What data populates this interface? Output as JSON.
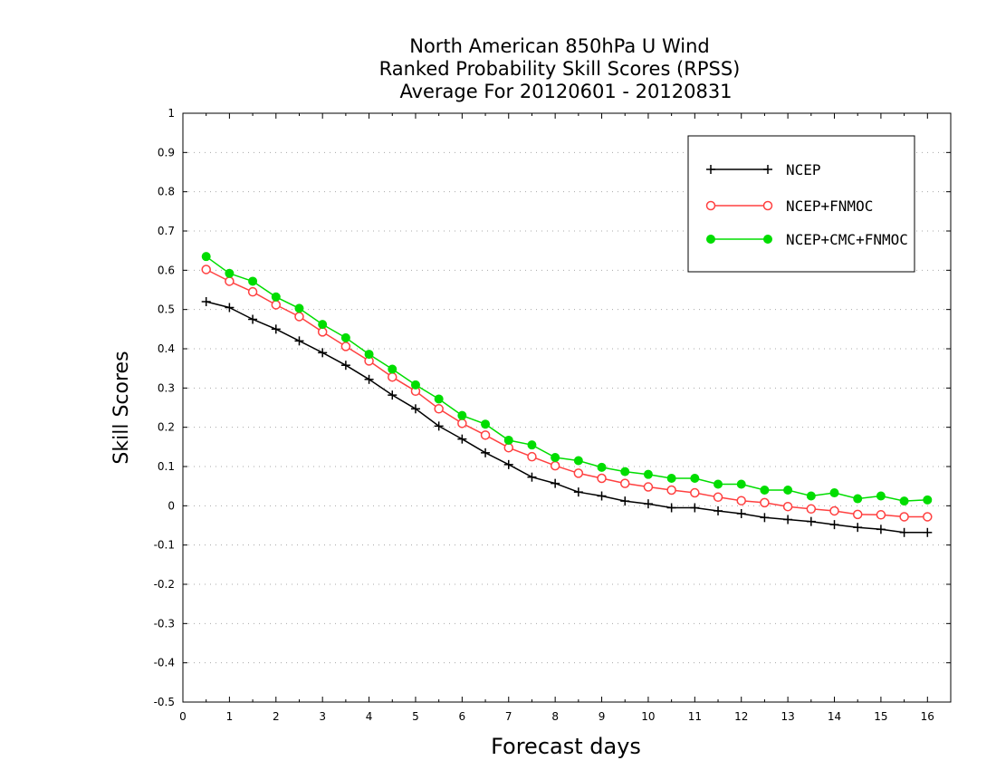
{
  "chart_data": {
    "type": "line",
    "title": [
      "North American 850hPa U Wind",
      "Ranked Probability Skill Scores (RPSS)",
      "Average For 20120601 - 20120831"
    ],
    "xlabel": "Forecast days",
    "ylabel": "Skill Scores",
    "xlim": [
      0,
      16.5
    ],
    "ylim": [
      -0.5,
      1
    ],
    "x_ticks": [
      0,
      1,
      2,
      3,
      4,
      5,
      6,
      7,
      8,
      9,
      10,
      11,
      12,
      13,
      14,
      15,
      16
    ],
    "x_tick_labels": [
      "0",
      "1",
      "2",
      "3",
      "4",
      "5",
      "6",
      "7",
      "8",
      "9",
      "10",
      "11",
      "12",
      "13",
      "14",
      "15",
      "16"
    ],
    "y_ticks": [
      -0.5,
      -0.4,
      -0.3,
      -0.2,
      -0.1,
      0,
      0.1,
      0.2,
      0.3,
      0.4,
      0.5,
      0.6,
      0.7,
      0.8,
      0.9,
      1
    ],
    "y_tick_labels": [
      "-0.5",
      "-0.4",
      "-0.3",
      "-0.2",
      "-0.1",
      "0",
      "0.1",
      "0.2",
      "0.3",
      "0.4",
      "0.5",
      "0.6",
      "0.7",
      "0.8",
      "0.9",
      "1"
    ],
    "grid": "dotted horizontal",
    "legend": "top-right",
    "x": [
      0.5,
      1,
      1.5,
      2,
      2.5,
      3,
      3.5,
      4,
      4.5,
      5,
      5.5,
      6,
      6.5,
      7,
      7.5,
      8,
      8.5,
      9,
      9.5,
      10,
      10.5,
      11,
      11.5,
      12,
      12.5,
      13,
      13.5,
      14,
      14.5,
      15,
      15.5,
      16
    ],
    "series": [
      {
        "name": "NCEP",
        "color": "#000000",
        "marker": "plus",
        "values": [
          0.52,
          0.505,
          0.475,
          0.45,
          0.42,
          0.39,
          0.358,
          0.322,
          0.282,
          0.247,
          0.203,
          0.17,
          0.135,
          0.105,
          0.073,
          0.057,
          0.035,
          0.025,
          0.012,
          0.005,
          -0.005,
          -0.005,
          -0.013,
          -0.02,
          -0.03,
          -0.035,
          -0.04,
          -0.048,
          -0.055,
          -0.06,
          -0.068,
          -0.068
        ]
      },
      {
        "name": "NCEP+FNMOC",
        "color": "#ff4040",
        "marker": "open-circle",
        "values": [
          0.602,
          0.572,
          0.545,
          0.512,
          0.482,
          0.443,
          0.406,
          0.369,
          0.328,
          0.292,
          0.247,
          0.21,
          0.18,
          0.148,
          0.125,
          0.102,
          0.083,
          0.07,
          0.057,
          0.048,
          0.04,
          0.033,
          0.022,
          0.013,
          0.008,
          -0.002,
          -0.008,
          -0.013,
          -0.022,
          -0.023,
          -0.028,
          -0.028
        ]
      },
      {
        "name": "NCEP+CMC+FNMOC",
        "color": "#00dd00",
        "marker": "filled-circle",
        "values": [
          0.635,
          0.592,
          0.572,
          0.532,
          0.503,
          0.462,
          0.428,
          0.386,
          0.348,
          0.308,
          0.272,
          0.23,
          0.208,
          0.167,
          0.155,
          0.123,
          0.115,
          0.098,
          0.087,
          0.08,
          0.07,
          0.07,
          0.055,
          0.055,
          0.04,
          0.04,
          0.025,
          0.033,
          0.018,
          0.025,
          0.012,
          0.015
        ]
      }
    ]
  }
}
